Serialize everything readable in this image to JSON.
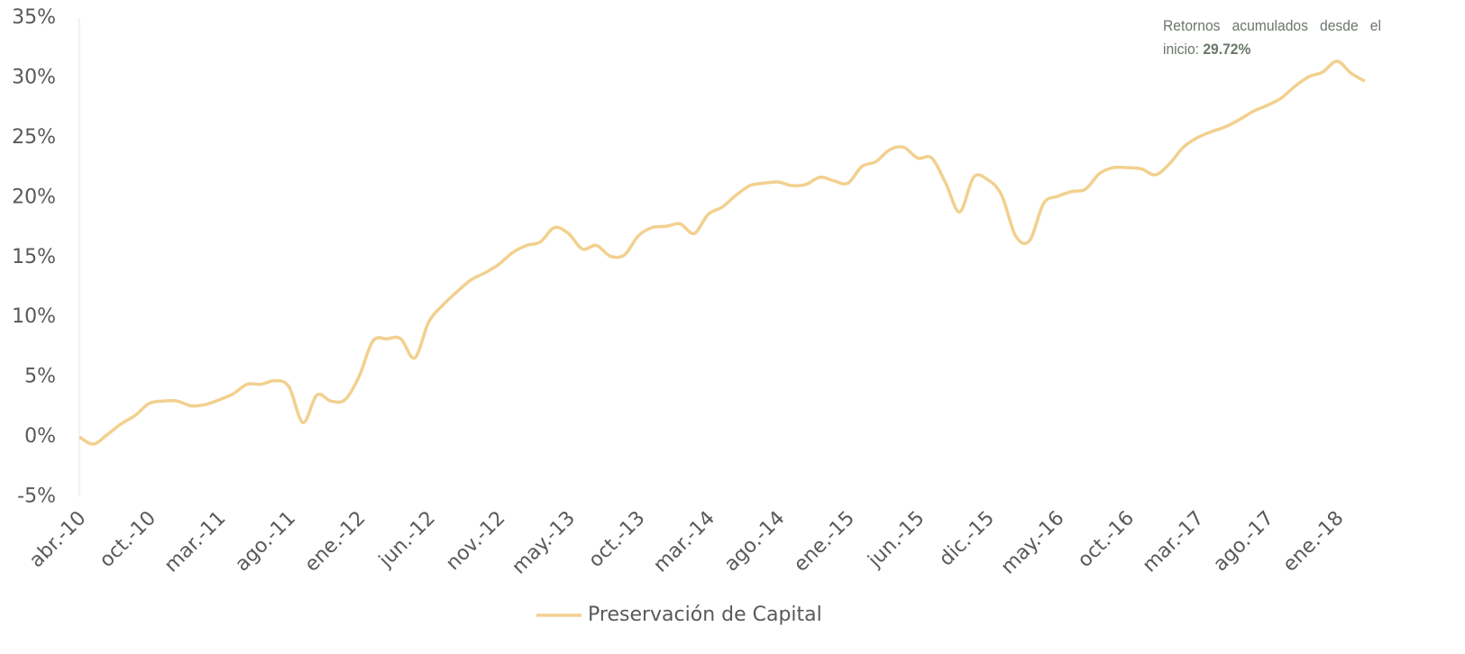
{
  "chart_data": {
    "type": "line",
    "annotation": {
      "text": "Retornos acumulados desde el inicio:",
      "highlight": "29.72%"
    },
    "categories": [
      "abr.-10",
      null,
      null,
      null,
      null,
      "oct.-10",
      null,
      null,
      null,
      null,
      "mar.-11",
      null,
      null,
      null,
      null,
      "ago.-11",
      null,
      null,
      null,
      null,
      "ene.-12",
      null,
      null,
      null,
      null,
      "jun.-12",
      null,
      null,
      null,
      null,
      "nov.-12",
      null,
      null,
      null,
      null,
      "may.-13",
      null,
      null,
      null,
      null,
      "oct.-13",
      null,
      null,
      null,
      null,
      "mar.-14",
      null,
      null,
      null,
      null,
      "ago.-14",
      null,
      null,
      null,
      null,
      "ene.-15",
      null,
      null,
      null,
      null,
      "jun.-15",
      null,
      null,
      null,
      null,
      "dic.-15",
      null,
      null,
      null,
      null,
      "may.-16",
      null,
      null,
      null,
      null,
      "oct.-16",
      null,
      null,
      null,
      null,
      "mar.-17",
      null,
      null,
      null,
      null,
      "ago.-17",
      null,
      null,
      null,
      null,
      "ene.-18",
      null,
      null
    ],
    "series": [
      {
        "name": "Preservación de Capital",
        "color": "#f2d08e",
        "values": [
          0,
          -0.6,
          0.2,
          1.1,
          1.8,
          2.8,
          3.0,
          3.0,
          2.6,
          2.7,
          3.1,
          3.6,
          4.4,
          4.4,
          4.7,
          4.2,
          1.2,
          3.5,
          3.0,
          3.1,
          5.0,
          8.0,
          8.2,
          8.2,
          6.6,
          9.6,
          11.0,
          12.1,
          13.1,
          13.7,
          14.4,
          15.4,
          16.0,
          16.3,
          17.5,
          17.0,
          15.7,
          16.0,
          15.1,
          15.2,
          16.8,
          17.5,
          17.6,
          17.8,
          17.0,
          18.6,
          19.2,
          20.2,
          21.0,
          21.2,
          21.3,
          21.0,
          21.1,
          21.7,
          21.4,
          21.2,
          22.6,
          23.0,
          24.0,
          24.2,
          23.3,
          23.3,
          21.2,
          18.8,
          21.7,
          21.5,
          20.2,
          16.8,
          16.4,
          19.5,
          20.1,
          20.5,
          20.7,
          22.0,
          22.5,
          22.5,
          22.4,
          21.9,
          22.8,
          24.2,
          25.0,
          25.5,
          25.9,
          26.5,
          27.2,
          27.7,
          28.3,
          29.3,
          30.1,
          30.5,
          31.4,
          30.4,
          29.72
        ]
      }
    ],
    "ylim": [
      -5,
      35
    ],
    "yticks": [
      {
        "value": -5,
        "label": "-5%"
      },
      {
        "value": 0,
        "label": "0%"
      },
      {
        "value": 5,
        "label": "5%"
      },
      {
        "value": 10,
        "label": "10%"
      },
      {
        "value": 15,
        "label": "15%"
      },
      {
        "value": 20,
        "label": "20%"
      },
      {
        "value": 25,
        "label": "25%"
      },
      {
        "value": 30,
        "label": "30%"
      },
      {
        "value": 35,
        "label": "35%"
      }
    ],
    "grid": false,
    "legend": "bottom"
  }
}
